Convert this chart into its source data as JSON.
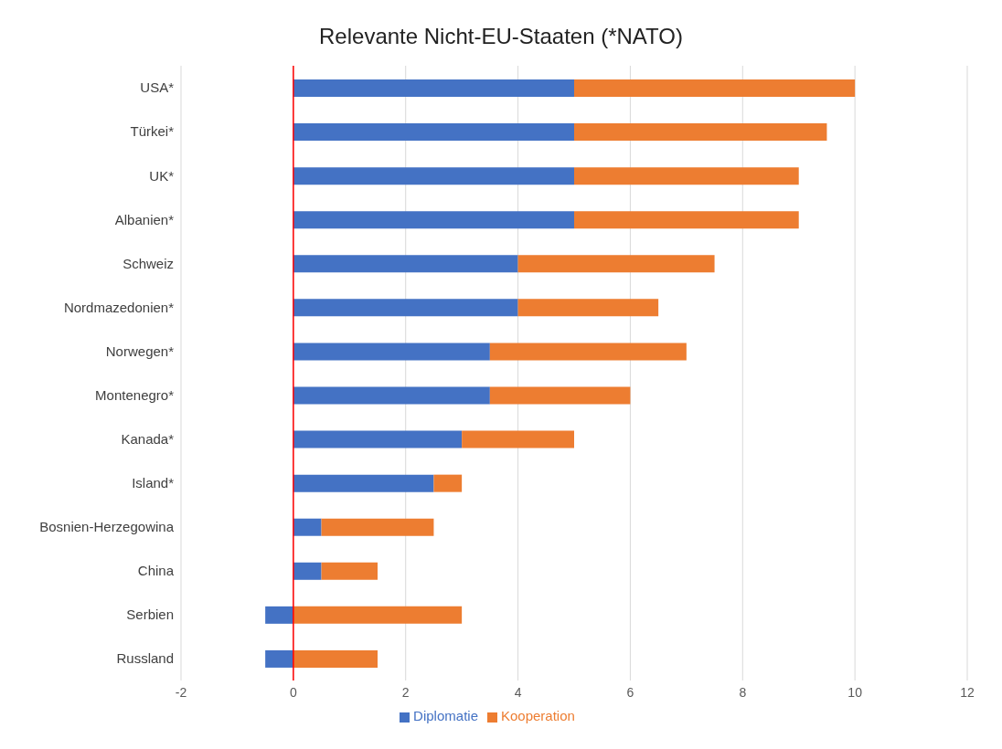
{
  "chart_data": {
    "type": "bar",
    "title": "Relevante Nicht-EU-Staaten (*NATO)",
    "orientation": "horizontal",
    "stacked": true,
    "categories": [
      "USA*",
      "Türkei*",
      "UK*",
      "Albanien*",
      "Schweiz",
      "Nordmazedonien*",
      "Norwegen*",
      "Montenegro*",
      "Kanada*",
      "Island*",
      "Bosnien-Herzegowina",
      "China",
      "Serbien",
      "Russland"
    ],
    "series": [
      {
        "name": "Diplomatie",
        "color": "#4472c4",
        "values": [
          5,
          5,
          5,
          5,
          4,
          4,
          3.5,
          3.5,
          3,
          2.5,
          0.5,
          0.5,
          -0.5,
          -0.5
        ]
      },
      {
        "name": "Kooperation",
        "color": "#ed7d31",
        "values": [
          5,
          4.5,
          4,
          4,
          3.5,
          2.5,
          3.5,
          2.5,
          2,
          0.5,
          2,
          1,
          3,
          1.5
        ]
      }
    ],
    "xlim": [
      -2,
      12
    ],
    "xticks": [
      -2,
      0,
      2,
      4,
      6,
      8,
      10,
      12
    ],
    "grid": "x",
    "legend": "bottom",
    "ref_lines": [
      {
        "axis": "x",
        "value": 0,
        "color": "#ff0000"
      }
    ]
  }
}
